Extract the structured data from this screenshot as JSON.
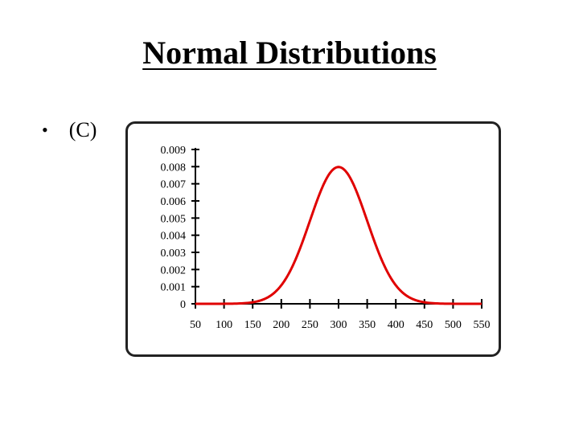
{
  "slide": {
    "title": "Normal Distributions",
    "bullet_marker": "•",
    "bullet_text": "(C)"
  },
  "colors": {
    "curve": "#e00000",
    "axis": "#000000",
    "frame": "#222222"
  },
  "chart_data": {
    "type": "line",
    "title": "",
    "xlabel": "",
    "ylabel": "",
    "distribution": {
      "mean": 300,
      "sd": 50
    },
    "xlim": [
      50,
      550
    ],
    "ylim": [
      0,
      0.009
    ],
    "x_ticks": [
      50,
      100,
      150,
      200,
      250,
      300,
      350,
      400,
      450,
      500,
      550
    ],
    "x_tick_labels": [
      "50",
      "100",
      "150",
      "200",
      "250",
      "300",
      "350",
      "400",
      "450",
      "500",
      "550"
    ],
    "y_ticks": [
      0,
      0.001,
      0.002,
      0.003,
      0.004,
      0.005,
      0.006,
      0.007,
      0.008,
      0.009
    ],
    "y_tick_labels": [
      "0",
      "0.001",
      "0.002",
      "0.003",
      "0.004",
      "0.005",
      "0.006",
      "0.007",
      "0.008",
      "0.009"
    ],
    "grid": false,
    "series": [
      {
        "x": [
          50,
          100,
          150,
          175,
          200,
          225,
          250,
          275,
          300,
          325,
          350,
          375,
          400,
          425,
          450,
          500,
          550
        ],
        "y": [
          0.0,
          0.0,
          0.0001,
          0.0004,
          0.0011,
          0.0026,
          0.0048,
          0.007,
          0.008,
          0.007,
          0.0048,
          0.0026,
          0.0011,
          0.0004,
          0.0001,
          0.0,
          0.0
        ]
      }
    ]
  }
}
